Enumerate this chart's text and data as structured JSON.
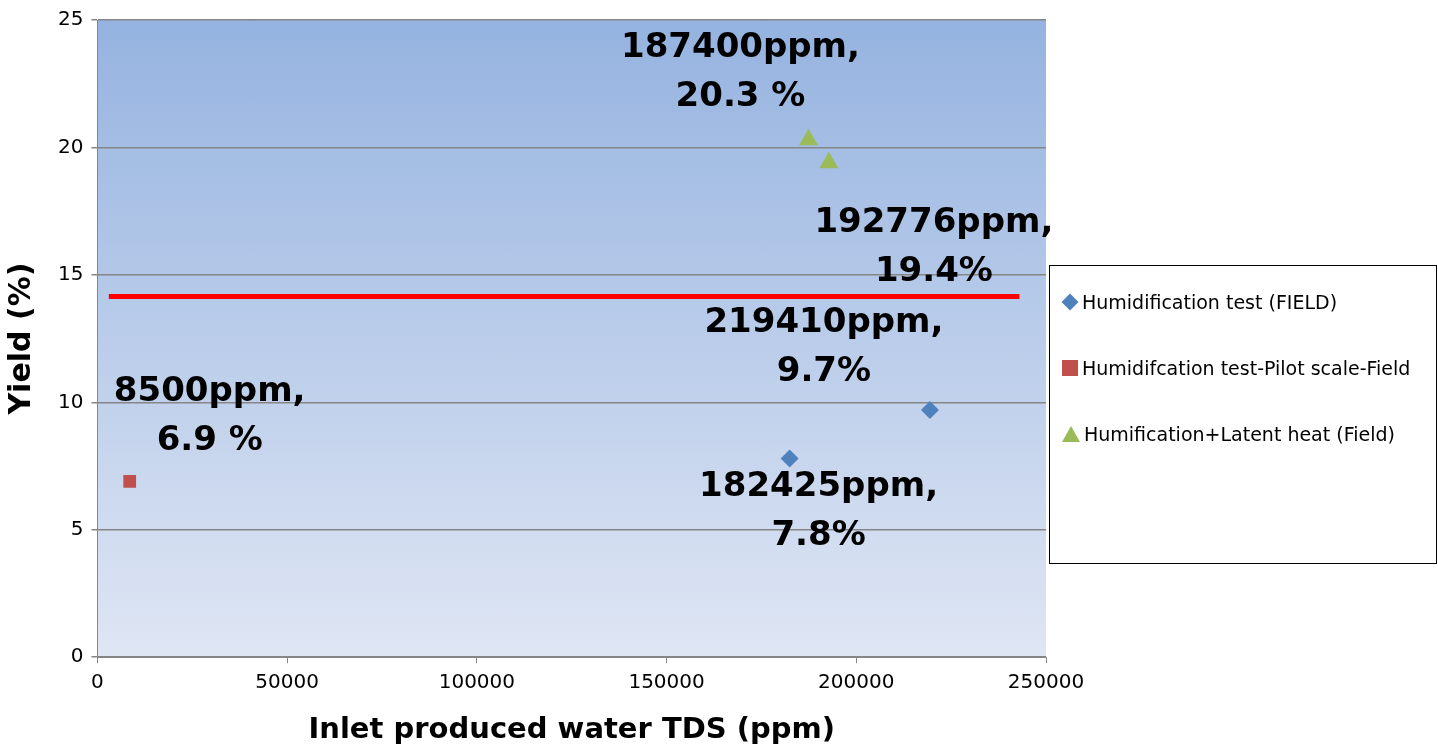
{
  "chart_data": {
    "type": "scatter",
    "xlabel": "Inlet produced water TDS (ppm)",
    "ylabel": "Yield (%)",
    "xlim": [
      0,
      250000
    ],
    "xticks": [
      0,
      50000,
      100000,
      150000,
      200000,
      250000
    ],
    "ylim": [
      0,
      25
    ],
    "yticks": [
      0,
      5,
      10,
      15,
      20,
      25
    ],
    "grid": "y",
    "legend": "right",
    "series": [
      {
        "name": "Humidification test (FIELD)",
        "color": "#4f81bd",
        "marker": "diamond",
        "x": [
          182425,
          219410
        ],
        "values": [
          7.8,
          9.7
        ]
      },
      {
        "name": "Humidifcation test-Pilot scale-Field",
        "color": "#c0504d",
        "marker": "square",
        "x": [
          8500
        ],
        "values": [
          6.9
        ]
      },
      {
        "name": "Humification+Latent heat (Field)",
        "color": "#9bbb59",
        "marker": "triangle",
        "x": [
          187400,
          192776
        ],
        "values": [
          20.3,
          19.4
        ]
      },
      {
        "type": "line",
        "color": "#ff0000",
        "marker": "none",
        "x": [
          3000,
          243000
        ],
        "values": [
          14.15,
          14.15
        ]
      }
    ],
    "annotations": [
      {
        "text": "187400ppm,\n20.3 %",
        "x": 187400,
        "y": 20.3
      },
      {
        "text": "192776ppm,\n19.4%",
        "x": 192776,
        "y": 19.4
      },
      {
        "text": "219410ppm,\n9.7%",
        "x": 219410,
        "y": 9.7
      },
      {
        "text": "182425ppm,\n7.8%",
        "x": 182425,
        "y": 7.8
      },
      {
        "text": "8500ppm,\n6.9 %",
        "x": 8500,
        "y": 6.9
      }
    ]
  }
}
